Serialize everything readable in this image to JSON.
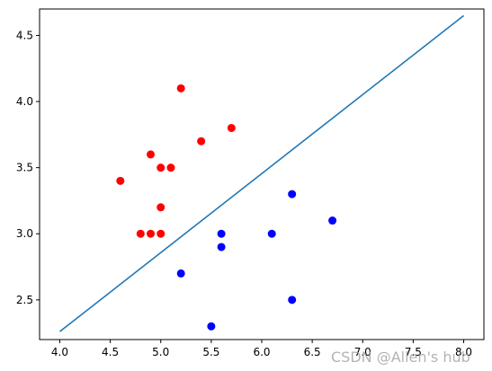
{
  "chart_data": {
    "type": "scatter",
    "title": "",
    "xlabel": "",
    "ylabel": "",
    "xlim": [
      3.8,
      8.2
    ],
    "ylim": [
      2.2,
      4.7
    ],
    "x_ticks": [
      4.0,
      4.5,
      5.0,
      5.5,
      6.0,
      6.5,
      7.0,
      7.5,
      8.0
    ],
    "x_tick_labels": [
      "4.0",
      "4.5",
      "5.0",
      "5.5",
      "6.0",
      "6.5",
      "7.0",
      "7.5",
      "8.0"
    ],
    "y_ticks": [
      2.5,
      3.0,
      3.5,
      4.0,
      4.5
    ],
    "y_tick_labels": [
      "2.5",
      "3.0",
      "3.5",
      "4.0",
      "4.5"
    ],
    "grid": false,
    "legend": "none",
    "series": [
      {
        "type": "scatter",
        "color": "#ff0000",
        "points": [
          {
            "x": 4.6,
            "y": 3.4
          },
          {
            "x": 4.8,
            "y": 3.0
          },
          {
            "x": 4.9,
            "y": 3.0
          },
          {
            "x": 4.9,
            "y": 3.6
          },
          {
            "x": 5.0,
            "y": 3.0
          },
          {
            "x": 5.0,
            "y": 3.2
          },
          {
            "x": 5.0,
            "y": 3.5
          },
          {
            "x": 5.1,
            "y": 3.5
          },
          {
            "x": 5.2,
            "y": 4.1
          },
          {
            "x": 5.4,
            "y": 3.7
          },
          {
            "x": 5.7,
            "y": 3.8
          }
        ]
      },
      {
        "type": "scatter",
        "color": "#0000ff",
        "points": [
          {
            "x": 5.2,
            "y": 2.7
          },
          {
            "x": 5.5,
            "y": 2.3
          },
          {
            "x": 5.6,
            "y": 2.9
          },
          {
            "x": 5.6,
            "y": 3.0
          },
          {
            "x": 6.1,
            "y": 3.0
          },
          {
            "x": 6.3,
            "y": 2.5
          },
          {
            "x": 6.3,
            "y": 3.3
          },
          {
            "x": 6.7,
            "y": 3.1
          }
        ]
      },
      {
        "type": "line",
        "color": "#1f77b4",
        "points": [
          {
            "x": 4.0,
            "y": 2.26
          },
          {
            "x": 8.0,
            "y": 4.65
          }
        ]
      }
    ]
  },
  "watermark": "CSDN @Allen's hub"
}
